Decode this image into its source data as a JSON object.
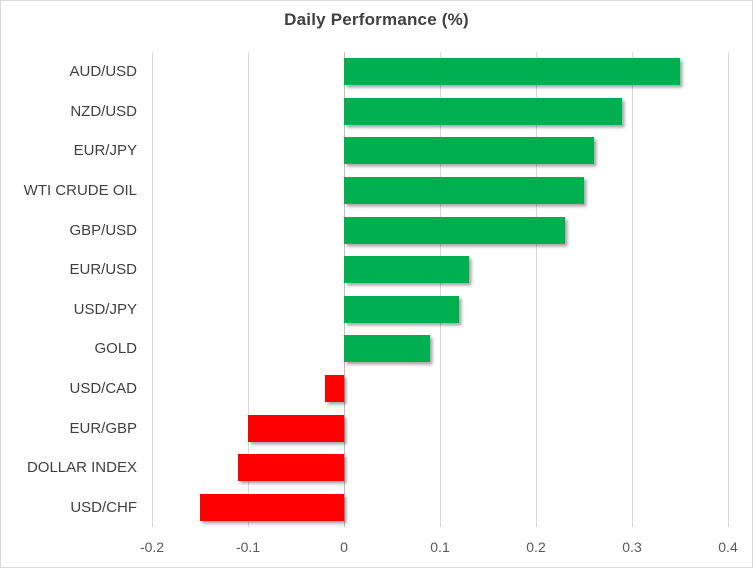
{
  "chart_data": {
    "type": "bar",
    "orientation": "horizontal",
    "title": "Daily Performance (%)",
    "categories": [
      "AUD/USD",
      "NZD/USD",
      "EUR/JPY",
      "WTI CRUDE OIL",
      "GBP/USD",
      "EUR/USD",
      "USD/JPY",
      "GOLD",
      "USD/CAD",
      "EUR/GBP",
      "DOLLAR INDEX",
      "USD/CHF"
    ],
    "values": [
      0.35,
      0.29,
      0.26,
      0.25,
      0.23,
      0.13,
      0.12,
      0.09,
      -0.02,
      -0.1,
      -0.11,
      -0.15
    ],
    "xlabel": "",
    "ylabel": "",
    "xlim": [
      -0.2,
      0.4
    ],
    "x_ticks": [
      -0.2,
      -0.1,
      0,
      0.1,
      0.2,
      0.3,
      0.4
    ],
    "x_tick_labels": [
      "-0.2",
      "-0.1",
      "0",
      "0.1",
      "0.2",
      "0.3",
      "0.4"
    ],
    "grid": true,
    "legend": false,
    "colors": {
      "positive_bar": "#00B050",
      "negative_bar": "#FF0000",
      "gridline": "#D9D9D9",
      "zero_line": "#BFBFBF",
      "title_text": "#404040",
      "category_label": "#404040",
      "tick_label": "#595959",
      "chart_border": "#D9D9D9",
      "background": "#FFFFFF"
    }
  }
}
